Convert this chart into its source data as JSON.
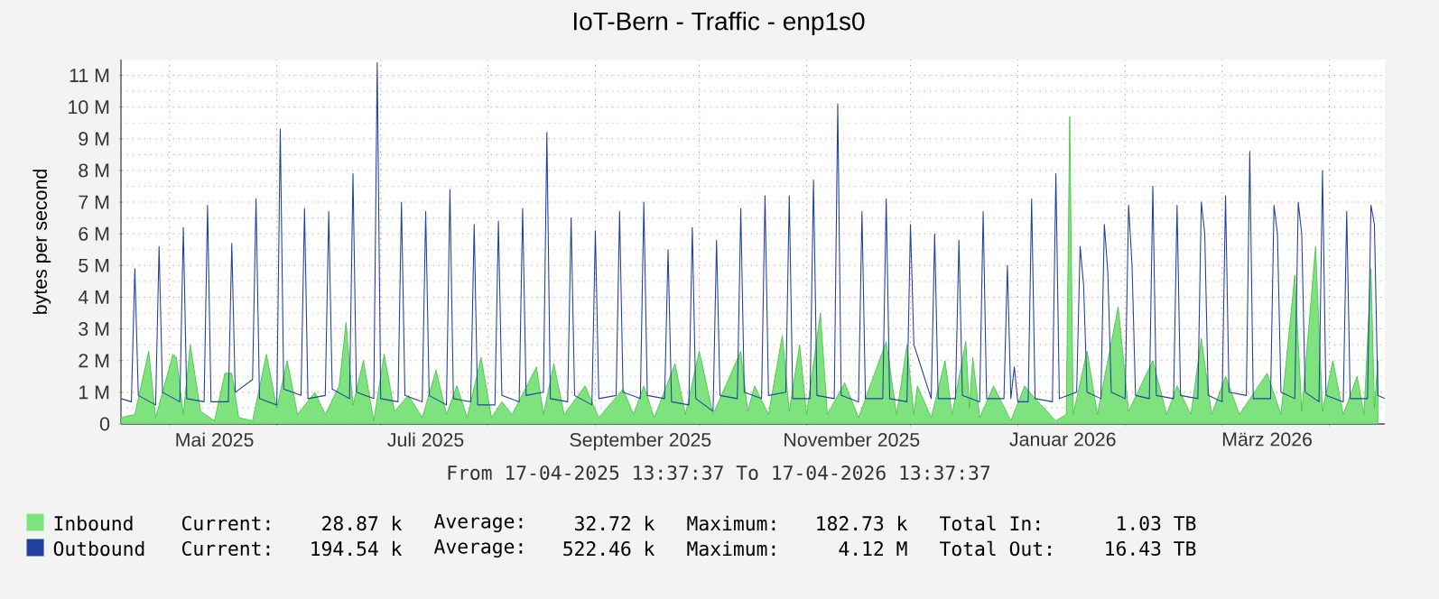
{
  "chart_data": {
    "type": "area",
    "title": "IoT-Bern - Traffic - enp1s0",
    "ylabel": "bytes per second",
    "xlim": [
      "2025-04-17",
      "2026-04-17"
    ],
    "xticks": [
      {
        "value": "2025-05-01",
        "label": null
      },
      {
        "value": "2025-05-14",
        "label": "Mai 2025"
      },
      {
        "value": "2025-06-01",
        "label": null
      },
      {
        "value": "2025-07-01",
        "label": null
      },
      {
        "value": "2025-07-14",
        "label": "Juli 2025"
      },
      {
        "value": "2025-08-01",
        "label": null
      },
      {
        "value": "2025-09-01",
        "label": null
      },
      {
        "value": "2025-09-14",
        "label": "September 2025"
      },
      {
        "value": "2025-10-01",
        "label": null
      },
      {
        "value": "2025-11-01",
        "label": null
      },
      {
        "value": "2025-11-14",
        "label": "November 2025"
      },
      {
        "value": "2025-12-01",
        "label": null
      },
      {
        "value": "2026-01-01",
        "label": null
      },
      {
        "value": "2026-01-14",
        "label": "Januar 2026"
      },
      {
        "value": "2026-02-01",
        "label": null
      },
      {
        "value": "2026-03-01",
        "label": null
      },
      {
        "value": "2026-03-14",
        "label": "März 2026"
      },
      {
        "value": "2026-04-01",
        "label": null
      }
    ],
    "ylim": [
      0,
      11.5
    ],
    "yticks": [
      0,
      {
        "value": 1,
        "label": "1 M"
      },
      {
        "value": 2,
        "label": "2 M"
      },
      {
        "value": 3,
        "label": "3 M"
      },
      {
        "value": 4,
        "label": "4 M"
      },
      {
        "value": 5,
        "label": "5 M"
      },
      {
        "value": 6,
        "label": "6 M"
      },
      {
        "value": 7,
        "label": "7 M"
      },
      {
        "value": 8,
        "label": "8 M"
      },
      {
        "value": 9,
        "label": "9 M"
      },
      {
        "value": 10,
        "label": "10 M"
      },
      {
        "value": 11,
        "label": "11 M"
      }
    ],
    "grid": true,
    "legend": "bottom",
    "annotations": [
      "From 17-04-2025 13:37:37 To 17-04-2026 13:37:37",
      "Current:",
      "28.87 k",
      "Average:",
      "32.72 k",
      "Maximum:",
      "182.73 k",
      "Total In:",
      "1.03 TB",
      "Current:",
      "194.54 k",
      "Average:",
      "522.46 k",
      "Maximum:",
      "4.12 M",
      "Total Out:",
      "16.43 TB"
    ],
    "series": [
      {
        "name": "Inbound",
        "color": "#7ee37e",
        "x": [
          "2025-04-17",
          "2025-04-21",
          "2025-04-25",
          "2025-04-27",
          "2025-05-02",
          "2025-05-03",
          "2025-05-05",
          "2025-05-07",
          "2025-05-10",
          "2025-05-14",
          "2025-05-17",
          "2025-05-19",
          "2025-05-21",
          "2025-05-25",
          "2025-05-29",
          "2025-06-01",
          "2025-06-04",
          "2025-06-07",
          "2025-06-12",
          "2025-06-15",
          "2025-06-19",
          "2025-06-21",
          "2025-06-23",
          "2025-06-26",
          "2025-06-29",
          "2025-07-02",
          "2025-07-05",
          "2025-07-09",
          "2025-07-13",
          "2025-07-17",
          "2025-07-20",
          "2025-07-23",
          "2025-07-26",
          "2025-07-30",
          "2025-08-02",
          "2025-08-05",
          "2025-08-08",
          "2025-08-15",
          "2025-08-17",
          "2025-08-20",
          "2025-08-23",
          "2025-08-29",
          "2025-09-02",
          "2025-09-09",
          "2025-09-12",
          "2025-09-15",
          "2025-09-18",
          "2025-09-24",
          "2025-09-27",
          "2025-10-01",
          "2025-10-05",
          "2025-10-13",
          "2025-10-15",
          "2025-10-17",
          "2025-10-21",
          "2025-10-25",
          "2025-10-27",
          "2025-10-30",
          "2025-11-01",
          "2025-11-05",
          "2025-11-07",
          "2025-11-12",
          "2025-11-16",
          "2025-11-24",
          "2025-11-27",
          "2025-11-30",
          "2025-12-02",
          "2025-12-03",
          "2025-12-07",
          "2025-12-11",
          "2025-12-13",
          "2025-12-17",
          "2025-12-18",
          "2025-12-19",
          "2025-12-21",
          "2025-12-25",
          "2025-12-30",
          "2026-01-03",
          "2026-01-06",
          "2026-01-12",
          "2026-01-15",
          "2026-01-16",
          "2026-01-17",
          "2026-01-21",
          "2026-01-24",
          "2026-01-30",
          "2026-02-02",
          "2026-02-09",
          "2026-02-13",
          "2026-02-16",
          "2026-02-20",
          "2026-02-23",
          "2026-02-26",
          "2026-03-02",
          "2026-03-06",
          "2026-03-14",
          "2026-03-18",
          "2026-03-22",
          "2026-03-24",
          "2026-03-28",
          "2026-03-30",
          "2026-04-02",
          "2026-04-05",
          "2026-04-09",
          "2026-04-11",
          "2026-04-13",
          "2026-04-14",
          "2026-04-15"
        ],
        "values": [
          0.2,
          0.3,
          2.3,
          0.2,
          2.2,
          2.1,
          0.3,
          2.5,
          0.4,
          0.1,
          1.6,
          1.6,
          0.2,
          0.1,
          2.2,
          0.5,
          2.0,
          0.3,
          1.0,
          0.3,
          1.2,
          3.2,
          0.6,
          2.0,
          0.1,
          2.2,
          0.4,
          0.9,
          0.2,
          1.7,
          0.3,
          1.2,
          0.2,
          2.1,
          0.2,
          0.7,
          0.3,
          1.8,
          0.3,
          1.9,
          0.3,
          1.2,
          0.2,
          1.1,
          0.3,
          1.2,
          0.2,
          1.9,
          0.3,
          2.3,
          0.3,
          2.3,
          0.4,
          1.2,
          0.3,
          2.8,
          0.4,
          2.5,
          0.3,
          3.5,
          0.3,
          1.3,
          0.2,
          2.6,
          0.3,
          2.5,
          0.3,
          1.2,
          0.2,
          2.0,
          0.3,
          2.6,
          0.5,
          2.1,
          0.2,
          1.2,
          0.1,
          1.2,
          0.8,
          0.1,
          0.3,
          9.7,
          0.3,
          2.3,
          0.3,
          3.7,
          0.4,
          2.0,
          0.3,
          1.2,
          0.3,
          2.7,
          0.3,
          1.5,
          0.3,
          1.6,
          0.3,
          4.7,
          0.4,
          5.6,
          0.4,
          2.0,
          0.3,
          1.5,
          0.3,
          4.9,
          0.5,
          2.0
        ]
      },
      {
        "name": "Outbound",
        "type": "line",
        "color": "#2040a0",
        "x": [
          "2025-04-17",
          "2025-04-20",
          "2025-04-21",
          "2025-04-22",
          "2025-04-27",
          "2025-04-28",
          "2025-04-29",
          "2025-05-04",
          "2025-05-05",
          "2025-05-06",
          "2025-05-11",
          "2025-05-12",
          "2025-05-13",
          "2025-05-18",
          "2025-05-19",
          "2025-05-20",
          "2025-05-25",
          "2025-05-26",
          "2025-05-27",
          "2025-06-01",
          "2025-06-02",
          "2025-06-03",
          "2025-06-08",
          "2025-06-09",
          "2025-06-10",
          "2025-06-15",
          "2025-06-16",
          "2025-06-17",
          "2025-06-22",
          "2025-06-23",
          "2025-06-24",
          "2025-06-29",
          "2025-06-30",
          "2025-07-01",
          "2025-07-06",
          "2025-07-07",
          "2025-07-08",
          "2025-07-13",
          "2025-07-14",
          "2025-07-15",
          "2025-07-20",
          "2025-07-21",
          "2025-07-22",
          "2025-07-27",
          "2025-07-28",
          "2025-07-29",
          "2025-08-03",
          "2025-08-04",
          "2025-08-05",
          "2025-08-10",
          "2025-08-11",
          "2025-08-12",
          "2025-08-17",
          "2025-08-18",
          "2025-08-19",
          "2025-08-24",
          "2025-08-25",
          "2025-08-26",
          "2025-08-31",
          "2025-09-01",
          "2025-09-02",
          "2025-09-07",
          "2025-09-08",
          "2025-09-09",
          "2025-09-14",
          "2025-09-15",
          "2025-09-16",
          "2025-09-21",
          "2025-09-22",
          "2025-09-23",
          "2025-09-28",
          "2025-09-29",
          "2025-09-30",
          "2025-10-05",
          "2025-10-06",
          "2025-10-07",
          "2025-10-12",
          "2025-10-13",
          "2025-10-14",
          "2025-10-19",
          "2025-10-20",
          "2025-10-21",
          "2025-10-26",
          "2025-10-27",
          "2025-10-28",
          "2025-11-02",
          "2025-11-03",
          "2025-11-04",
          "2025-11-09",
          "2025-11-10",
          "2025-11-11",
          "2025-11-16",
          "2025-11-17",
          "2025-11-18",
          "2025-11-23",
          "2025-11-24",
          "2025-11-25",
          "2025-11-30",
          "2025-12-01",
          "2025-12-02",
          "2025-12-07",
          "2025-12-08",
          "2025-12-09",
          "2025-12-14",
          "2025-12-15",
          "2025-12-16",
          "2025-12-21",
          "2025-12-22",
          "2025-12-23",
          "2025-12-28",
          "2025-12-29",
          "2025-12-30",
          "2025-12-31",
          "2026-01-01",
          "2026-01-04",
          "2026-01-05",
          "2026-01-06",
          "2026-01-11",
          "2026-01-12",
          "2026-01-13",
          "2026-01-18",
          "2026-01-19",
          "2026-01-20",
          "2026-01-21",
          "2026-01-25",
          "2026-01-26",
          "2026-01-27",
          "2026-01-28",
          "2026-02-01",
          "2026-02-02",
          "2026-02-03",
          "2026-02-04",
          "2026-02-08",
          "2026-02-09",
          "2026-02-10",
          "2026-02-15",
          "2026-02-16",
          "2026-02-17",
          "2026-02-22",
          "2026-02-23",
          "2026-02-24",
          "2026-02-25",
          "2026-03-01",
          "2026-03-02",
          "2026-03-03",
          "2026-03-08",
          "2026-03-09",
          "2026-03-10",
          "2026-03-15",
          "2026-03-16",
          "2026-03-17",
          "2026-03-18",
          "2026-03-22",
          "2026-03-23",
          "2026-03-24",
          "2026-03-25",
          "2026-03-29",
          "2026-03-30",
          "2026-03-31",
          "2026-04-05",
          "2026-04-06",
          "2026-04-07",
          "2026-04-12",
          "2026-04-13",
          "2026-04-14",
          "2026-04-15",
          "2026-04-17"
        ],
        "values": [
          0.8,
          0.7,
          4.9,
          0.9,
          0.6,
          5.6,
          1.0,
          0.7,
          6.2,
          0.8,
          0.7,
          6.9,
          0.7,
          0.7,
          5.7,
          1.0,
          1.4,
          7.1,
          0.8,
          0.6,
          9.3,
          1.1,
          0.9,
          6.8,
          0.8,
          0.9,
          6.7,
          1.1,
          0.8,
          7.9,
          1.0,
          0.8,
          11.4,
          0.8,
          0.7,
          7.0,
          0.9,
          0.7,
          6.7,
          0.9,
          0.6,
          7.4,
          0.8,
          0.7,
          6.3,
          0.6,
          0.6,
          6.4,
          0.9,
          0.7,
          6.8,
          0.9,
          1.0,
          9.2,
          0.8,
          0.7,
          6.5,
          0.9,
          0.6,
          6.1,
          0.8,
          0.9,
          6.7,
          1.0,
          0.8,
          7.0,
          0.9,
          0.8,
          5.5,
          0.7,
          0.6,
          6.2,
          0.8,
          0.4,
          5.8,
          0.9,
          0.8,
          6.8,
          1.0,
          0.8,
          7.2,
          0.9,
          1.0,
          7.2,
          0.8,
          0.8,
          7.7,
          0.9,
          0.8,
          10.1,
          0.9,
          0.7,
          6.7,
          0.8,
          0.8,
          7.1,
          0.8,
          0.7,
          6.3,
          2.5,
          0.8,
          6.0,
          0.8,
          0.8,
          5.8,
          0.9,
          0.7,
          6.7,
          0.8,
          0.8,
          5.0,
          0.8,
          1.8,
          0.7,
          0.7,
          7.1,
          0.8,
          0.7,
          7.9,
          0.8,
          1.0,
          5.6,
          4.4,
          1.0,
          0.8,
          6.3,
          4.8,
          1.0,
          0.8,
          6.9,
          5.0,
          0.9,
          0.8,
          7.5,
          0.9,
          0.8,
          6.9,
          0.9,
          0.8,
          7.0,
          6.0,
          0.9,
          0.7,
          7.2,
          1.0,
          0.9,
          8.6,
          0.8,
          0.8,
          6.9,
          6.0,
          1.0,
          0.8,
          7.0,
          6.0,
          1.0,
          0.7,
          8.0,
          0.9,
          0.7,
          6.7,
          0.8,
          0.8,
          6.9,
          6.3,
          0.9,
          0.8
        ]
      }
    ]
  }
}
